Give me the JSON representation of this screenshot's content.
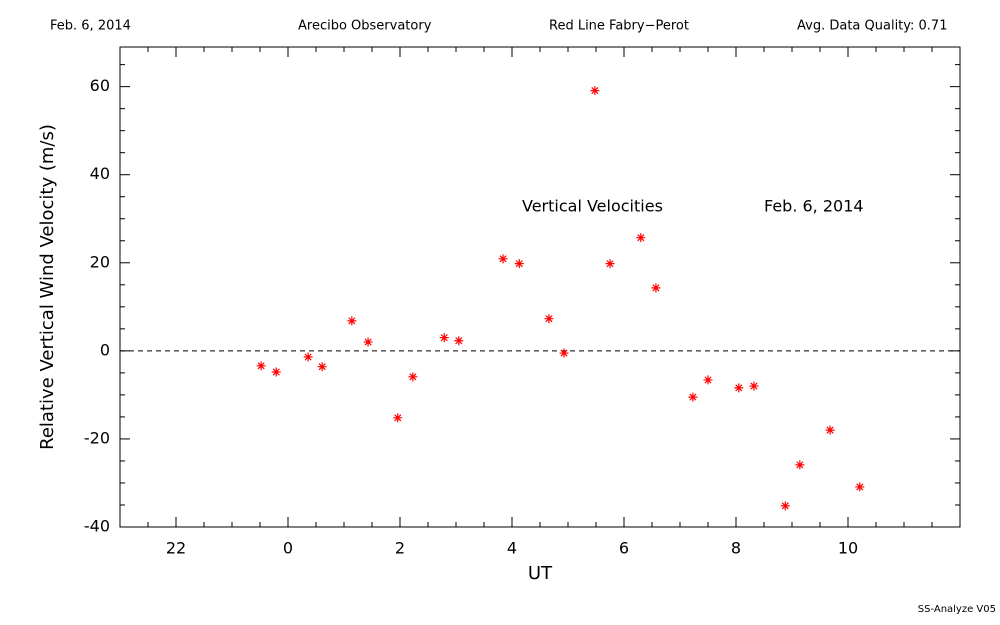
{
  "chart_data": {
    "type": "scatter",
    "header": [
      "Feb. 6, 2014",
      "Arecibo Observatory",
      "Red Line Fabry−Perot",
      "Avg. Data Quality: 0.71"
    ],
    "annotations": [
      "Vertical Velocities",
      "Feb. 6, 2014"
    ],
    "footer": "SS-Analyze V05",
    "xlabel": "UT",
    "ylabel": "Relative Vertical Wind Velocity (m/s)",
    "xlim": [
      -3,
      12
    ],
    "xticks": [
      {
        "value": -2,
        "label": "22"
      },
      0,
      2,
      4,
      6,
      8,
      10
    ],
    "ylim": [
      -40,
      69
    ],
    "yticks": [
      -40,
      -20,
      0,
      20,
      40,
      60
    ],
    "reference_line": 0,
    "series": [
      {
        "color": "#ff0000",
        "x": [
          -0.48,
          -0.21,
          0.36,
          0.61,
          1.14,
          1.43,
          1.96,
          2.23,
          2.79,
          3.05,
          3.84,
          4.13,
          4.66,
          4.93,
          5.48,
          5.75,
          6.3,
          6.57,
          7.23,
          7.5,
          8.05,
          8.32,
          8.88,
          9.14,
          9.68,
          10.21
        ],
        "values": [
          -3.4,
          -4.8,
          -1.4,
          -3.6,
          6.8,
          2.0,
          -15.2,
          -5.9,
          3.0,
          2.3,
          20.9,
          19.8,
          7.3,
          -0.5,
          59.1,
          19.8,
          25.7,
          14.3,
          -10.5,
          -6.6,
          -8.4,
          -8.0,
          -35.2,
          -25.9,
          -18.0,
          -30.9
        ]
      }
    ]
  }
}
